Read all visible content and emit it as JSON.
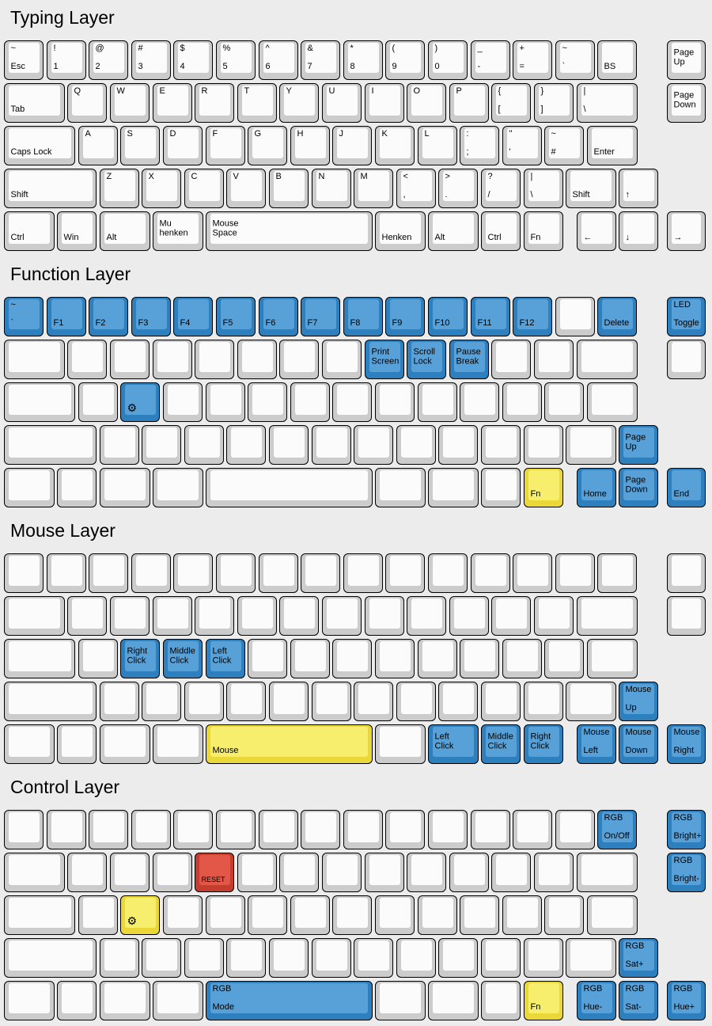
{
  "colors": {
    "background": "#ececec",
    "key_border": "#000000",
    "white": {
      "outer": "#cccccc",
      "inner": "#fbfbfb"
    },
    "blue": {
      "outer": "#2d7fbd",
      "inner": "#58a1d8"
    },
    "yellow": {
      "outer": "#e9d838",
      "inner": "#f7ee6e"
    },
    "red": {
      "outer": "#c53d2e",
      "inner": "#e25747"
    }
  },
  "layers": [
    {
      "title": "Typing Layer",
      "rows": [
        [
          {
            "c": "white",
            "t": "~",
            "b": "Esc"
          },
          {
            "c": "white",
            "t": "!",
            "b": "1"
          },
          {
            "c": "white",
            "t": "@",
            "b": "2"
          },
          {
            "c": "white",
            "t": "#",
            "b": "3"
          },
          {
            "c": "white",
            "t": "$",
            "b": "4"
          },
          {
            "c": "white",
            "t": "%",
            "b": "5"
          },
          {
            "c": "white",
            "t": "^",
            "b": "6"
          },
          {
            "c": "white",
            "t": "&",
            "b": "7"
          },
          {
            "c": "white",
            "t": "*",
            "b": "8"
          },
          {
            "c": "white",
            "t": "(",
            "b": "9"
          },
          {
            "c": "white",
            "t": ")",
            "b": "0"
          },
          {
            "c": "white",
            "t": "_",
            "b": "-"
          },
          {
            "c": "white",
            "t": "+",
            "b": "="
          },
          {
            "c": "white",
            "t": "~",
            "b": "`"
          },
          {
            "c": "white",
            "b": "BS"
          },
          {
            "c": "white",
            "m": "Page\nUp"
          }
        ],
        [
          {
            "c": "white",
            "b": "Tab"
          },
          {
            "c": "white",
            "t": "Q"
          },
          {
            "c": "white",
            "t": "W"
          },
          {
            "c": "white",
            "t": "E"
          },
          {
            "c": "white",
            "t": "R"
          },
          {
            "c": "white",
            "t": "T"
          },
          {
            "c": "white",
            "t": "Y"
          },
          {
            "c": "white",
            "t": "U"
          },
          {
            "c": "white",
            "t": "I"
          },
          {
            "c": "white",
            "t": "O"
          },
          {
            "c": "white",
            "t": "P"
          },
          {
            "c": "white",
            "t": "{",
            "b": "["
          },
          {
            "c": "white",
            "t": "}",
            "b": "]"
          },
          {
            "c": "white",
            "t": "|",
            "b": "\\"
          },
          {
            "c": "white",
            "m": "Page\nDown"
          }
        ],
        [
          {
            "c": "white",
            "b": "Caps Lock"
          },
          {
            "c": "white",
            "t": "A"
          },
          {
            "c": "white",
            "t": "S"
          },
          {
            "c": "white",
            "t": "D"
          },
          {
            "c": "white",
            "t": "F"
          },
          {
            "c": "white",
            "t": "G"
          },
          {
            "c": "white",
            "t": "H"
          },
          {
            "c": "white",
            "t": "J"
          },
          {
            "c": "white",
            "t": "K"
          },
          {
            "c": "white",
            "t": "L"
          },
          {
            "c": "white",
            "t": ":",
            "b": ";"
          },
          {
            "c": "white",
            "t": "\"",
            "b": "'"
          },
          {
            "c": "white",
            "t": "~",
            "b": "#"
          },
          {
            "c": "white",
            "b": "Enter"
          }
        ],
        [
          {
            "c": "white",
            "b": "Shift"
          },
          {
            "c": "white",
            "t": "Z"
          },
          {
            "c": "white",
            "t": "X"
          },
          {
            "c": "white",
            "t": "C"
          },
          {
            "c": "white",
            "t": "V"
          },
          {
            "c": "white",
            "t": "B"
          },
          {
            "c": "white",
            "t": "N"
          },
          {
            "c": "white",
            "t": "M"
          },
          {
            "c": "white",
            "t": "<",
            "b": ","
          },
          {
            "c": "white",
            "t": ">",
            "b": "."
          },
          {
            "c": "white",
            "t": "?",
            "b": "/"
          },
          {
            "c": "white",
            "t": "|",
            "b": "\\"
          },
          {
            "c": "white",
            "b": "Shift"
          },
          {
            "c": "white",
            "b": "↑"
          }
        ],
        [
          {
            "c": "white",
            "b": "Ctrl"
          },
          {
            "c": "white",
            "b": "Win"
          },
          {
            "c": "white",
            "b": "Alt"
          },
          {
            "c": "white",
            "m": "Mu\nhenken"
          },
          {
            "c": "white",
            "m": "Mouse\nSpace"
          },
          {
            "c": "white",
            "b": "Henken"
          },
          {
            "c": "white",
            "b": "Alt"
          },
          {
            "c": "white",
            "b": "Ctrl"
          },
          {
            "c": "white",
            "b": "Fn"
          },
          {
            "c": "white",
            "b": "←"
          },
          {
            "c": "white",
            "b": "↓"
          },
          {
            "c": "white",
            "b": "→"
          }
        ]
      ]
    },
    {
      "title": "Function Layer",
      "rows": [
        [
          {
            "c": "blue",
            "t": "~",
            "b": "`"
          },
          {
            "c": "blue",
            "b": "F1"
          },
          {
            "c": "blue",
            "b": "F2"
          },
          {
            "c": "blue",
            "b": "F3"
          },
          {
            "c": "blue",
            "b": "F4"
          },
          {
            "c": "blue",
            "b": "F5"
          },
          {
            "c": "blue",
            "b": "F6"
          },
          {
            "c": "blue",
            "b": "F7"
          },
          {
            "c": "blue",
            "b": "F8"
          },
          {
            "c": "blue",
            "b": "F9"
          },
          {
            "c": "blue",
            "b": "F10"
          },
          {
            "c": "blue",
            "b": "F11"
          },
          {
            "c": "blue",
            "b": "F12"
          },
          {
            "c": "white"
          },
          {
            "c": "blue",
            "b": "Delete"
          },
          {
            "c": "blue",
            "t": "LED",
            "b": "Toggle"
          }
        ],
        [
          {
            "c": "white"
          },
          {
            "c": "white"
          },
          {
            "c": "white"
          },
          {
            "c": "white"
          },
          {
            "c": "white"
          },
          {
            "c": "white"
          },
          {
            "c": "white"
          },
          {
            "c": "white"
          },
          {
            "c": "blue",
            "m": "Print\nScreen"
          },
          {
            "c": "blue",
            "m": "Scroll\nLock"
          },
          {
            "c": "blue",
            "m": "Pause\nBreak"
          },
          {
            "c": "white"
          },
          {
            "c": "white"
          },
          {
            "c": "white"
          },
          {
            "c": "white"
          }
        ],
        [
          {
            "c": "white"
          },
          {
            "c": "white"
          },
          {
            "c": "blue",
            "b": "⚙",
            "icon": "gear"
          },
          {
            "c": "white"
          },
          {
            "c": "white"
          },
          {
            "c": "white"
          },
          {
            "c": "white"
          },
          {
            "c": "white"
          },
          {
            "c": "white"
          },
          {
            "c": "white"
          },
          {
            "c": "white"
          },
          {
            "c": "white"
          },
          {
            "c": "white"
          },
          {
            "c": "white"
          }
        ],
        [
          {
            "c": "white"
          },
          {
            "c": "white"
          },
          {
            "c": "white"
          },
          {
            "c": "white"
          },
          {
            "c": "white"
          },
          {
            "c": "white"
          },
          {
            "c": "white"
          },
          {
            "c": "white"
          },
          {
            "c": "white"
          },
          {
            "c": "white"
          },
          {
            "c": "white"
          },
          {
            "c": "white"
          },
          {
            "c": "white"
          },
          {
            "c": "blue",
            "m": "Page\nUp"
          }
        ],
        [
          {
            "c": "white"
          },
          {
            "c": "white"
          },
          {
            "c": "white"
          },
          {
            "c": "white"
          },
          {
            "c": "white"
          },
          {
            "c": "white"
          },
          {
            "c": "white"
          },
          {
            "c": "white"
          },
          {
            "c": "yellow",
            "b": "Fn"
          },
          {
            "c": "blue",
            "b": "Home"
          },
          {
            "c": "blue",
            "m": "Page\nDown"
          },
          {
            "c": "blue",
            "b": "End"
          }
        ]
      ]
    },
    {
      "title": "Mouse Layer",
      "rows": [
        [
          {
            "c": "white"
          },
          {
            "c": "white"
          },
          {
            "c": "white"
          },
          {
            "c": "white"
          },
          {
            "c": "white"
          },
          {
            "c": "white"
          },
          {
            "c": "white"
          },
          {
            "c": "white"
          },
          {
            "c": "white"
          },
          {
            "c": "white"
          },
          {
            "c": "white"
          },
          {
            "c": "white"
          },
          {
            "c": "white"
          },
          {
            "c": "white"
          },
          {
            "c": "white"
          },
          {
            "c": "white"
          }
        ],
        [
          {
            "c": "white"
          },
          {
            "c": "white"
          },
          {
            "c": "white"
          },
          {
            "c": "white"
          },
          {
            "c": "white"
          },
          {
            "c": "white"
          },
          {
            "c": "white"
          },
          {
            "c": "white"
          },
          {
            "c": "white"
          },
          {
            "c": "white"
          },
          {
            "c": "white"
          },
          {
            "c": "white"
          },
          {
            "c": "white"
          },
          {
            "c": "white"
          },
          {
            "c": "white"
          }
        ],
        [
          {
            "c": "white"
          },
          {
            "c": "white"
          },
          {
            "c": "blue",
            "m": "Right\nClick"
          },
          {
            "c": "blue",
            "m": "Middle\nClick"
          },
          {
            "c": "blue",
            "m": "Left\nClick"
          },
          {
            "c": "white"
          },
          {
            "c": "white"
          },
          {
            "c": "white"
          },
          {
            "c": "white"
          },
          {
            "c": "white"
          },
          {
            "c": "white"
          },
          {
            "c": "white"
          },
          {
            "c": "white"
          },
          {
            "c": "white"
          }
        ],
        [
          {
            "c": "white"
          },
          {
            "c": "white"
          },
          {
            "c": "white"
          },
          {
            "c": "white"
          },
          {
            "c": "white"
          },
          {
            "c": "white"
          },
          {
            "c": "white"
          },
          {
            "c": "white"
          },
          {
            "c": "white"
          },
          {
            "c": "white"
          },
          {
            "c": "white"
          },
          {
            "c": "white"
          },
          {
            "c": "white"
          },
          {
            "c": "blue",
            "t": "Mouse",
            "b": "Up"
          }
        ],
        [
          {
            "c": "white"
          },
          {
            "c": "white"
          },
          {
            "c": "white"
          },
          {
            "c": "white"
          },
          {
            "c": "yellow",
            "b": "Mouse"
          },
          {
            "c": "white"
          },
          {
            "c": "blue",
            "m": "Left\nClick"
          },
          {
            "c": "blue",
            "m": "Middle\nClick"
          },
          {
            "c": "blue",
            "m": "Right\nClick"
          },
          {
            "c": "blue",
            "t": "Mouse",
            "b": "Left"
          },
          {
            "c": "blue",
            "t": "Mouse",
            "b": "Down"
          },
          {
            "c": "blue",
            "t": "Mouse",
            "b": "Right"
          }
        ]
      ]
    },
    {
      "title": "Control Layer",
      "rows": [
        [
          {
            "c": "white"
          },
          {
            "c": "white"
          },
          {
            "c": "white"
          },
          {
            "c": "white"
          },
          {
            "c": "white"
          },
          {
            "c": "white"
          },
          {
            "c": "white"
          },
          {
            "c": "white"
          },
          {
            "c": "white"
          },
          {
            "c": "white"
          },
          {
            "c": "white"
          },
          {
            "c": "white"
          },
          {
            "c": "white"
          },
          {
            "c": "white"
          },
          {
            "c": "blue",
            "t": "RGB",
            "b": "On/Off"
          },
          {
            "c": "blue",
            "t": "RGB",
            "b": "Bright+"
          }
        ],
        [
          {
            "c": "white"
          },
          {
            "c": "white"
          },
          {
            "c": "white"
          },
          {
            "c": "white"
          },
          {
            "c": "red",
            "b": "RESET",
            "size": "small"
          },
          {
            "c": "white"
          },
          {
            "c": "white"
          },
          {
            "c": "white"
          },
          {
            "c": "white"
          },
          {
            "c": "white"
          },
          {
            "c": "white"
          },
          {
            "c": "white"
          },
          {
            "c": "white"
          },
          {
            "c": "white"
          },
          {
            "c": "blue",
            "t": "RGB",
            "b": "Bright-"
          }
        ],
        [
          {
            "c": "white"
          },
          {
            "c": "white"
          },
          {
            "c": "yellow",
            "b": "⚙",
            "icon": "gear"
          },
          {
            "c": "white"
          },
          {
            "c": "white"
          },
          {
            "c": "white"
          },
          {
            "c": "white"
          },
          {
            "c": "white"
          },
          {
            "c": "white"
          },
          {
            "c": "white"
          },
          {
            "c": "white"
          },
          {
            "c": "white"
          },
          {
            "c": "white"
          },
          {
            "c": "white"
          }
        ],
        [
          {
            "c": "white"
          },
          {
            "c": "white"
          },
          {
            "c": "white"
          },
          {
            "c": "white"
          },
          {
            "c": "white"
          },
          {
            "c": "white"
          },
          {
            "c": "white"
          },
          {
            "c": "white"
          },
          {
            "c": "white"
          },
          {
            "c": "white"
          },
          {
            "c": "white"
          },
          {
            "c": "white"
          },
          {
            "c": "white"
          },
          {
            "c": "blue",
            "t": "RGB",
            "b": "Sat+"
          }
        ],
        [
          {
            "c": "white"
          },
          {
            "c": "white"
          },
          {
            "c": "white"
          },
          {
            "c": "white"
          },
          {
            "c": "blue",
            "t": "RGB",
            "b": "Mode"
          },
          {
            "c": "white"
          },
          {
            "c": "white"
          },
          {
            "c": "white"
          },
          {
            "c": "yellow",
            "b": "Fn"
          },
          {
            "c": "blue",
            "t": "RGB",
            "b": "Hue-"
          },
          {
            "c": "blue",
            "t": "RGB",
            "b": "Sat-"
          },
          {
            "c": "blue",
            "t": "RGB",
            "b": "Hue+"
          }
        ]
      ]
    }
  ]
}
